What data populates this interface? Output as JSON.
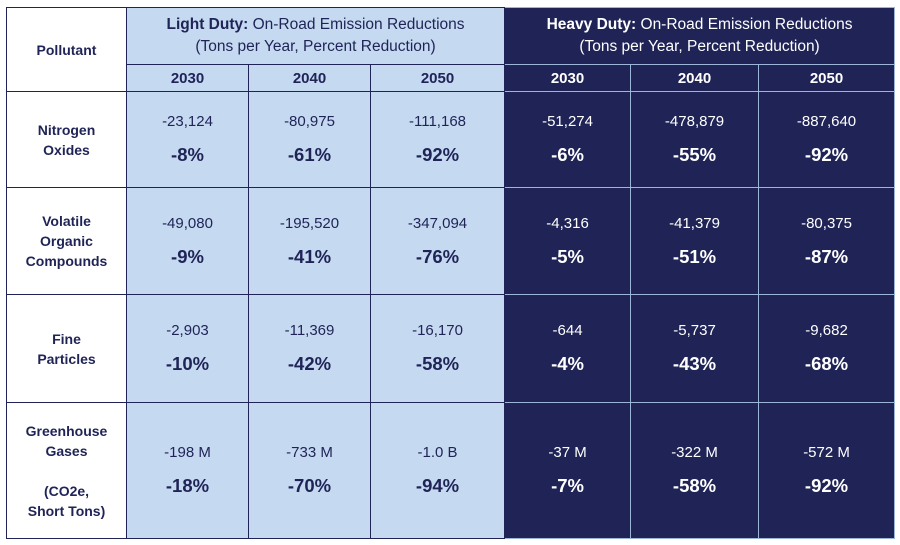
{
  "header": {
    "pollutant_label": "Pollutant",
    "light": {
      "title_bold": "Light Duty:",
      "title_rest": " On-Road Emission Reductions",
      "subtitle": "(Tons per Year, Percent Reduction)"
    },
    "heavy": {
      "title_bold": "Heavy Duty:",
      "title_rest": " On-Road Emission Reductions",
      "subtitle": "(Tons per Year, Percent Reduction)"
    },
    "years": [
      "2030",
      "2040",
      "2050"
    ]
  },
  "rows": [
    {
      "pollutant_lines": [
        "Nitrogen",
        "Oxides"
      ],
      "light": [
        {
          "value": "-23,124",
          "percent": "-8%"
        },
        {
          "value": "-80,975",
          "percent": "-61%"
        },
        {
          "value": "-111,168",
          "percent": "-92%"
        }
      ],
      "heavy": [
        {
          "value": "-51,274",
          "percent": "-6%"
        },
        {
          "value": "-478,879",
          "percent": "-55%"
        },
        {
          "value": "-887,640",
          "percent": "-92%"
        }
      ]
    },
    {
      "pollutant_lines": [
        "Volatile",
        "Organic",
        "Compounds"
      ],
      "light": [
        {
          "value": "-49,080",
          "percent": "-9%"
        },
        {
          "value": "-195,520",
          "percent": "-41%"
        },
        {
          "value": "-347,094",
          "percent": "-76%"
        }
      ],
      "heavy": [
        {
          "value": "-4,316",
          "percent": "-5%"
        },
        {
          "value": "-41,379",
          "percent": "-51%"
        },
        {
          "value": "-80,375",
          "percent": "-87%"
        }
      ]
    },
    {
      "pollutant_lines": [
        "Fine",
        "Particles"
      ],
      "light": [
        {
          "value": "-2,903",
          "percent": "-10%"
        },
        {
          "value": "-11,369",
          "percent": "-42%"
        },
        {
          "value": "-16,170",
          "percent": "-58%"
        }
      ],
      "heavy": [
        {
          "value": "-644",
          "percent": "-4%"
        },
        {
          "value": "-5,737",
          "percent": "-43%"
        },
        {
          "value": "-9,682",
          "percent": "-68%"
        }
      ]
    },
    {
      "pollutant_lines": [
        "Greenhouse",
        "Gases",
        "(CO2e,",
        "Short Tons)"
      ],
      "light": [
        {
          "value": "-198 M",
          "percent": "-18%"
        },
        {
          "value": "-733 M",
          "percent": "-70%"
        },
        {
          "value": "-1.0 B",
          "percent": "-94%"
        }
      ],
      "heavy": [
        {
          "value": "-37 M",
          "percent": "-7%"
        },
        {
          "value": "-322 M",
          "percent": "-58%"
        },
        {
          "value": "-572 M",
          "percent": "-92%"
        }
      ]
    }
  ],
  "colors": {
    "navy": "#1f2356",
    "light_blue": "#c5d9f1",
    "white": "#ffffff"
  }
}
